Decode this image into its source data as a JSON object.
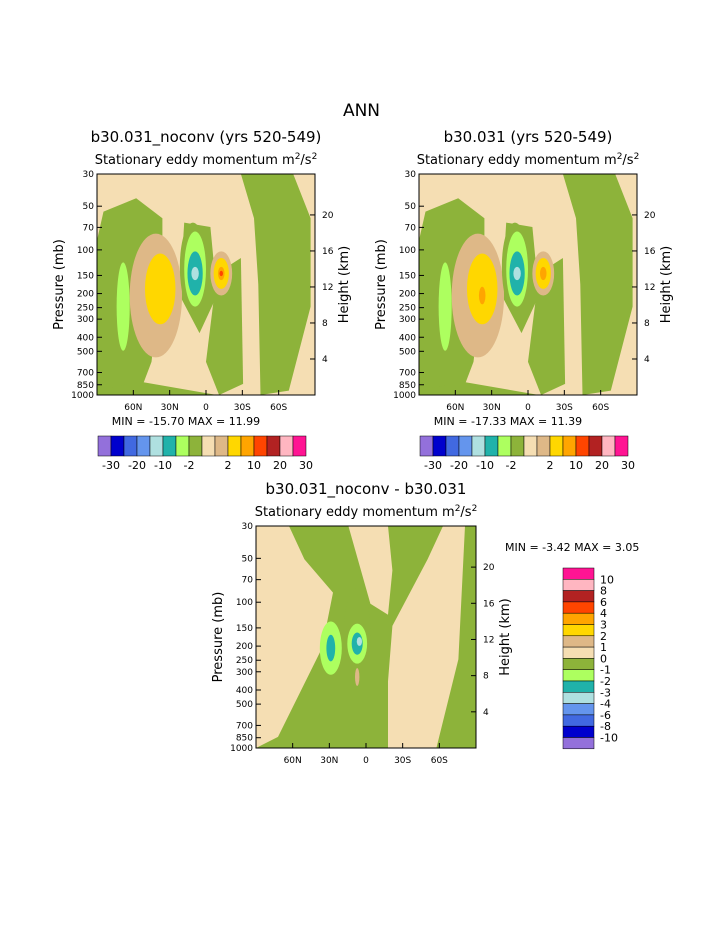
{
  "page_title": "ANN",
  "palette": {
    "cbar_full": [
      "#9370db",
      "#0000cd",
      "#4169e1",
      "#6495ed",
      "#afe0e0",
      "#20b2aa",
      "#adff5f",
      "#8db33a",
      "#f5deb3",
      "#deb887",
      "#ffd700",
      "#ffa500",
      "#ff4500",
      "#b22222",
      "#ffb6c1",
      "#ff1493"
    ],
    "cbar_diff": [
      "#ff1493",
      "#ffb6c1",
      "#b22222",
      "#ff4500",
      "#ffa500",
      "#ffd700",
      "#deb887",
      "#f5deb3",
      "#8db33a",
      "#adff5f",
      "#20b2aa",
      "#afe0e0",
      "#6495ed",
      "#4169e1",
      "#0000cd",
      "#9370db"
    ]
  },
  "chart_data": [
    {
      "type": "heatmap",
      "title": "b30.031_noconv (yrs 520-549)",
      "subtitle": "Stationary eddy momentum",
      "units_base": "m",
      "units_sup1": "2",
      "units_mid": "/s",
      "units_sup2": "2",
      "xlabel": "",
      "ylabel": "Pressure (mb)",
      "y2label": "Height (km)",
      "x_ticks": [
        "60N",
        "30N",
        "0",
        "30S",
        "60S"
      ],
      "y_ticks": [
        "30",
        "50",
        "70",
        "100",
        "150",
        "200",
        "250",
        "300",
        "400",
        "500",
        "700",
        "850",
        "1000"
      ],
      "y2_ticks": [
        "20",
        "16",
        "12",
        "8",
        "4"
      ],
      "min_label": "MIN = ",
      "min_value": "-15.70",
      "max_label": "MAX = ",
      "max_value": "11.99",
      "colorbar_labels": [
        "-30",
        "-20",
        "-10",
        "-2",
        "2",
        "10",
        "20",
        "30"
      ]
    },
    {
      "type": "heatmap",
      "title": "b30.031 (yrs 520-549)",
      "subtitle": "Stationary eddy momentum",
      "units_base": "m",
      "units_sup1": "2",
      "units_mid": "/s",
      "units_sup2": "2",
      "xlabel": "",
      "ylabel": "Pressure (mb)",
      "y2label": "Height (km)",
      "x_ticks": [
        "60N",
        "30N",
        "0",
        "30S",
        "60S"
      ],
      "y_ticks": [
        "30",
        "50",
        "70",
        "100",
        "150",
        "200",
        "250",
        "300",
        "400",
        "500",
        "700",
        "850",
        "1000"
      ],
      "y2_ticks": [
        "20",
        "16",
        "12",
        "8",
        "4"
      ],
      "min_label": "MIN = ",
      "min_value": "-17.33",
      "max_label": "MAX = ",
      "max_value": "11.39",
      "colorbar_labels": [
        "-30",
        "-20",
        "-10",
        "-2",
        "2",
        "10",
        "20",
        "30"
      ]
    },
    {
      "type": "heatmap",
      "title": "b30.031_noconv - b30.031",
      "subtitle": "Stationary eddy momentum",
      "units_base": "m",
      "units_sup1": "2",
      "units_mid": "/s",
      "units_sup2": "2",
      "xlabel": "",
      "ylabel": "Pressure (mb)",
      "y2label": "Height (km)",
      "x_ticks": [
        "60N",
        "30N",
        "0",
        "30S",
        "60S"
      ],
      "y_ticks": [
        "30",
        "50",
        "70",
        "100",
        "150",
        "200",
        "250",
        "300",
        "400",
        "500",
        "700",
        "850",
        "1000"
      ],
      "y2_ticks": [
        "20",
        "16",
        "12",
        "8",
        "4"
      ],
      "min_label": "MIN = ",
      "min_value": "-3.42",
      "max_label": "MAX = ",
      "max_value": "3.05",
      "colorbar_labels": [
        "10",
        "8",
        "6",
        "4",
        "3",
        "2",
        "1",
        "0",
        "-1",
        "-2",
        "-3",
        "-4",
        "-6",
        "-8",
        "-10"
      ]
    }
  ]
}
